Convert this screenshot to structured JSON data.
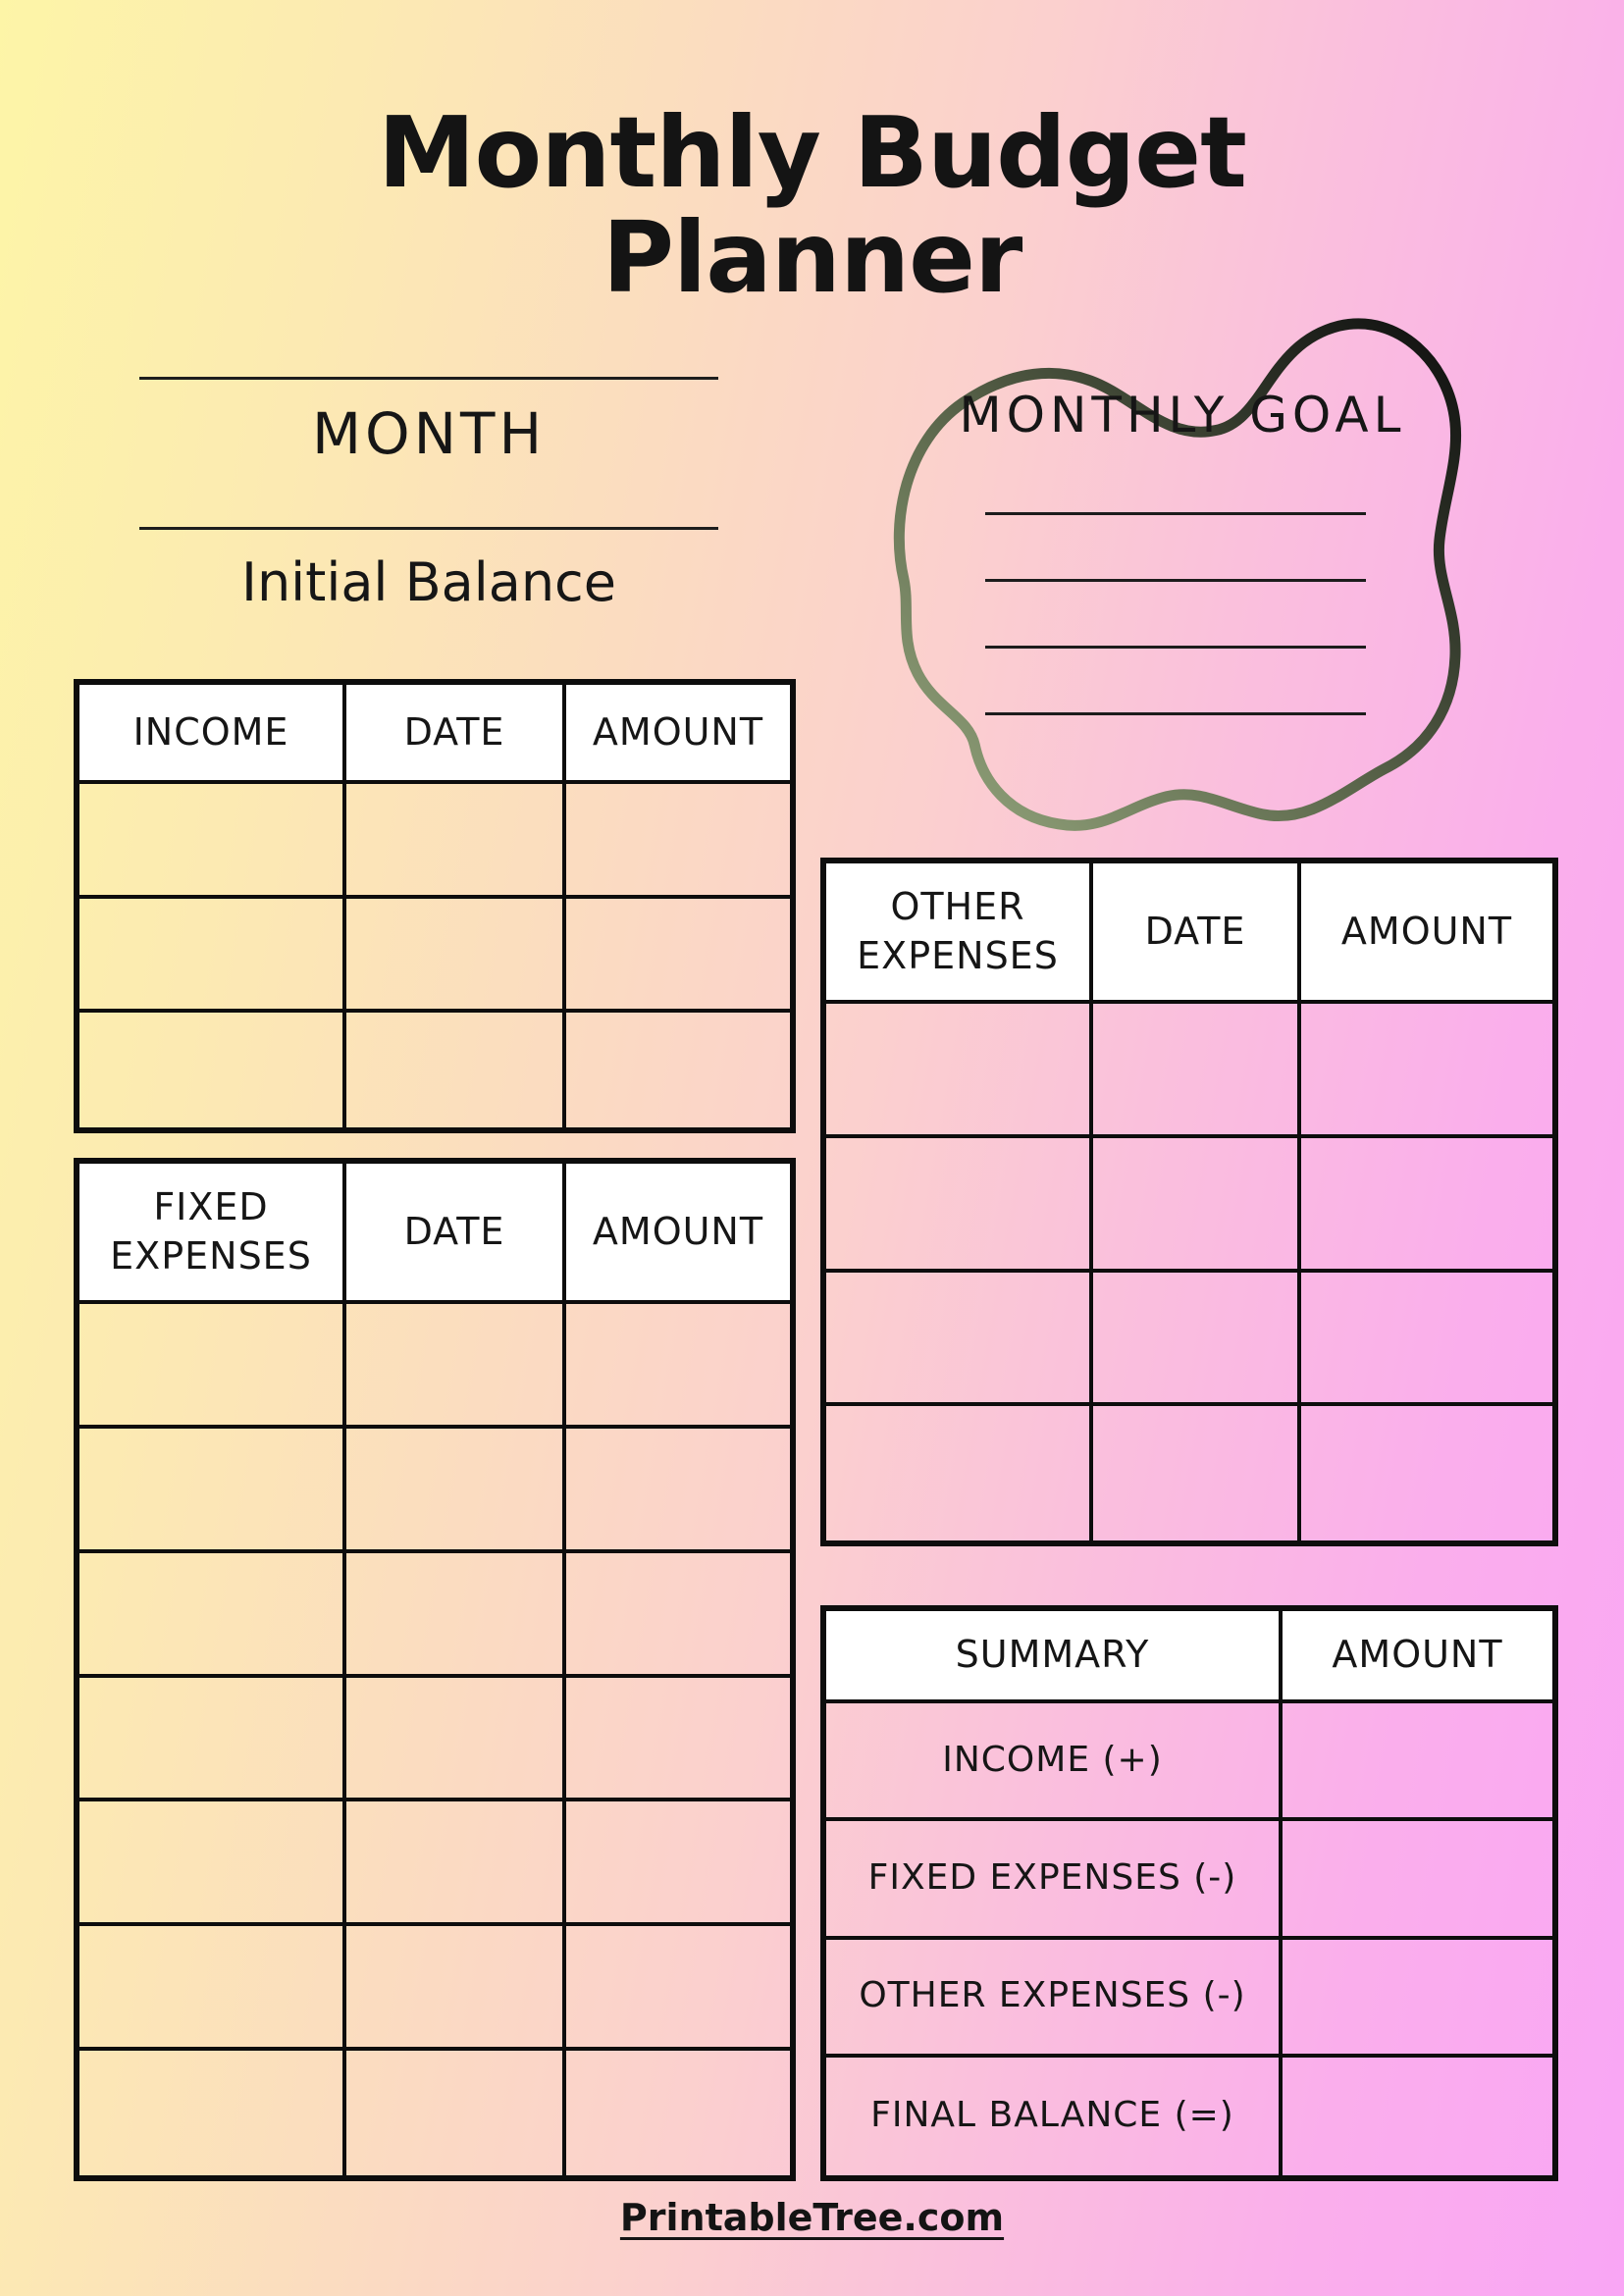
{
  "page": {
    "title": [
      "Monthly Budget",
      "Planner"
    ],
    "footer_link": "PrintableTree.com"
  },
  "month_section": {
    "month_label": "MONTH",
    "initial_balance_label": "Initial Balance"
  },
  "monthly_goal": {
    "label": "MONTHLY GOAL",
    "line_count": 4
  },
  "tables": {
    "income": {
      "headers": [
        "INCOME",
        "DATE",
        "AMOUNT"
      ],
      "body_rows": 3
    },
    "fixed_expenses": {
      "headers": [
        "FIXED EXPENSES",
        "DATE",
        "AMOUNT"
      ],
      "body_rows": 7
    },
    "other_expenses": {
      "headers": [
        "OTHER EXPENSES",
        "DATE",
        "AMOUNT"
      ],
      "body_rows": 4
    },
    "summary": {
      "headers": [
        "SUMMARY",
        "AMOUNT"
      ],
      "row_labels": [
        "INCOME (+)",
        "FIXED EXPENSES (-)",
        "OTHER EXPENSES (-)",
        "FINAL BALANCE (=)"
      ]
    }
  },
  "colors": {
    "gradient_left": "#fdf5a7",
    "gradient_mid": "#fbd0ce",
    "gradient_right": "#f9a6f5",
    "header_cell_bg": "#ffffff",
    "line_ink": "#0d0d0d",
    "blob_gradient_start": "#97a87f",
    "blob_gradient_end": "#0f0f0f"
  }
}
